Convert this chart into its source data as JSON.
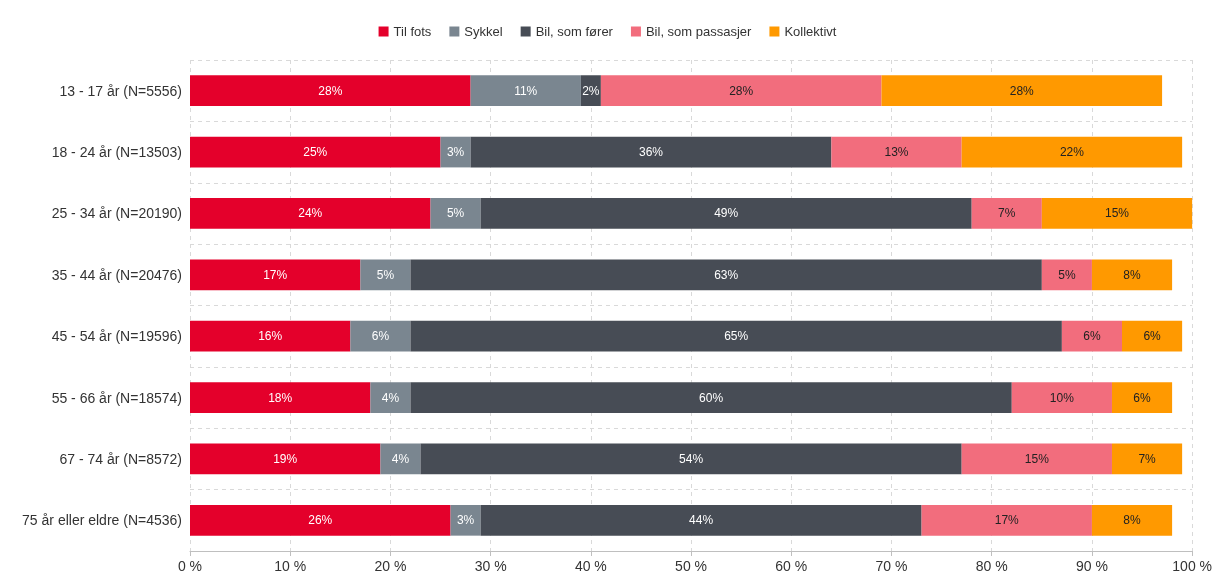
{
  "chart_data": {
    "type": "bar",
    "orientation": "horizontal",
    "stacked": true,
    "legend": "top",
    "grid": true,
    "categories": [
      "13 - 17 år (N=5556)",
      "18 - 24 år (N=13503)",
      "25 - 34 år (N=20190)",
      "35 - 44 år (N=20476)",
      "45 - 54 år (N=19596)",
      "55 - 66 år (N=18574)",
      "67 - 74 år (N=8572)",
      "75 år eller eldre (N=4536)"
    ],
    "xlim": [
      0,
      100
    ],
    "xticks": [
      {
        "value": 0,
        "label": "0 %"
      },
      {
        "value": 10,
        "label": "10 %"
      },
      {
        "value": 20,
        "label": "20 %"
      },
      {
        "value": 30,
        "label": "30 %"
      },
      {
        "value": 40,
        "label": "40 %"
      },
      {
        "value": 50,
        "label": "50 %"
      },
      {
        "value": 60,
        "label": "60 %"
      },
      {
        "value": 70,
        "label": "70 %"
      },
      {
        "value": 80,
        "label": "80 %"
      },
      {
        "value": 90,
        "label": "90 %"
      },
      {
        "value": 100,
        "label": "100 %"
      }
    ],
    "series": [
      {
        "name": "Til fots",
        "color": "#e4002b",
        "values": [
          28,
          25,
          24,
          17,
          16,
          18,
          19,
          26
        ],
        "value_labels": [
          "28%",
          "25%",
          "24%",
          "17%",
          "16%",
          "18%",
          "19%",
          "26%"
        ]
      },
      {
        "name": "Sykkel",
        "color": "#7a8690",
        "values": [
          11,
          3,
          5,
          5,
          6,
          4,
          4,
          3
        ],
        "value_labels": [
          "11%",
          "3%",
          "5%",
          "5%",
          "6%",
          "4%",
          "4%",
          "3%"
        ]
      },
      {
        "name": "Bil, som fører",
        "color": "#474c55",
        "values": [
          2,
          36,
          49,
          63,
          65,
          60,
          54,
          44
        ],
        "value_labels": [
          "2%",
          "36%",
          "49%",
          "63%",
          "65%",
          "60%",
          "54%",
          "44%"
        ]
      },
      {
        "name": "Bil, som passasjer",
        "color": "#f26d7d",
        "values": [
          28,
          13,
          7,
          5,
          6,
          10,
          15,
          17
        ],
        "value_labels": [
          "28%",
          "13%",
          "7%",
          "5%",
          "6%",
          "10%",
          "15%",
          "17%"
        ]
      },
      {
        "name": "Kollektivt",
        "color": "#ff9900",
        "values": [
          28,
          22,
          15,
          8,
          6,
          6,
          7,
          8
        ],
        "value_labels": [
          "28%",
          "22%",
          "15%",
          "8%",
          "6%",
          "6%",
          "7%",
          "8%"
        ]
      }
    ]
  }
}
